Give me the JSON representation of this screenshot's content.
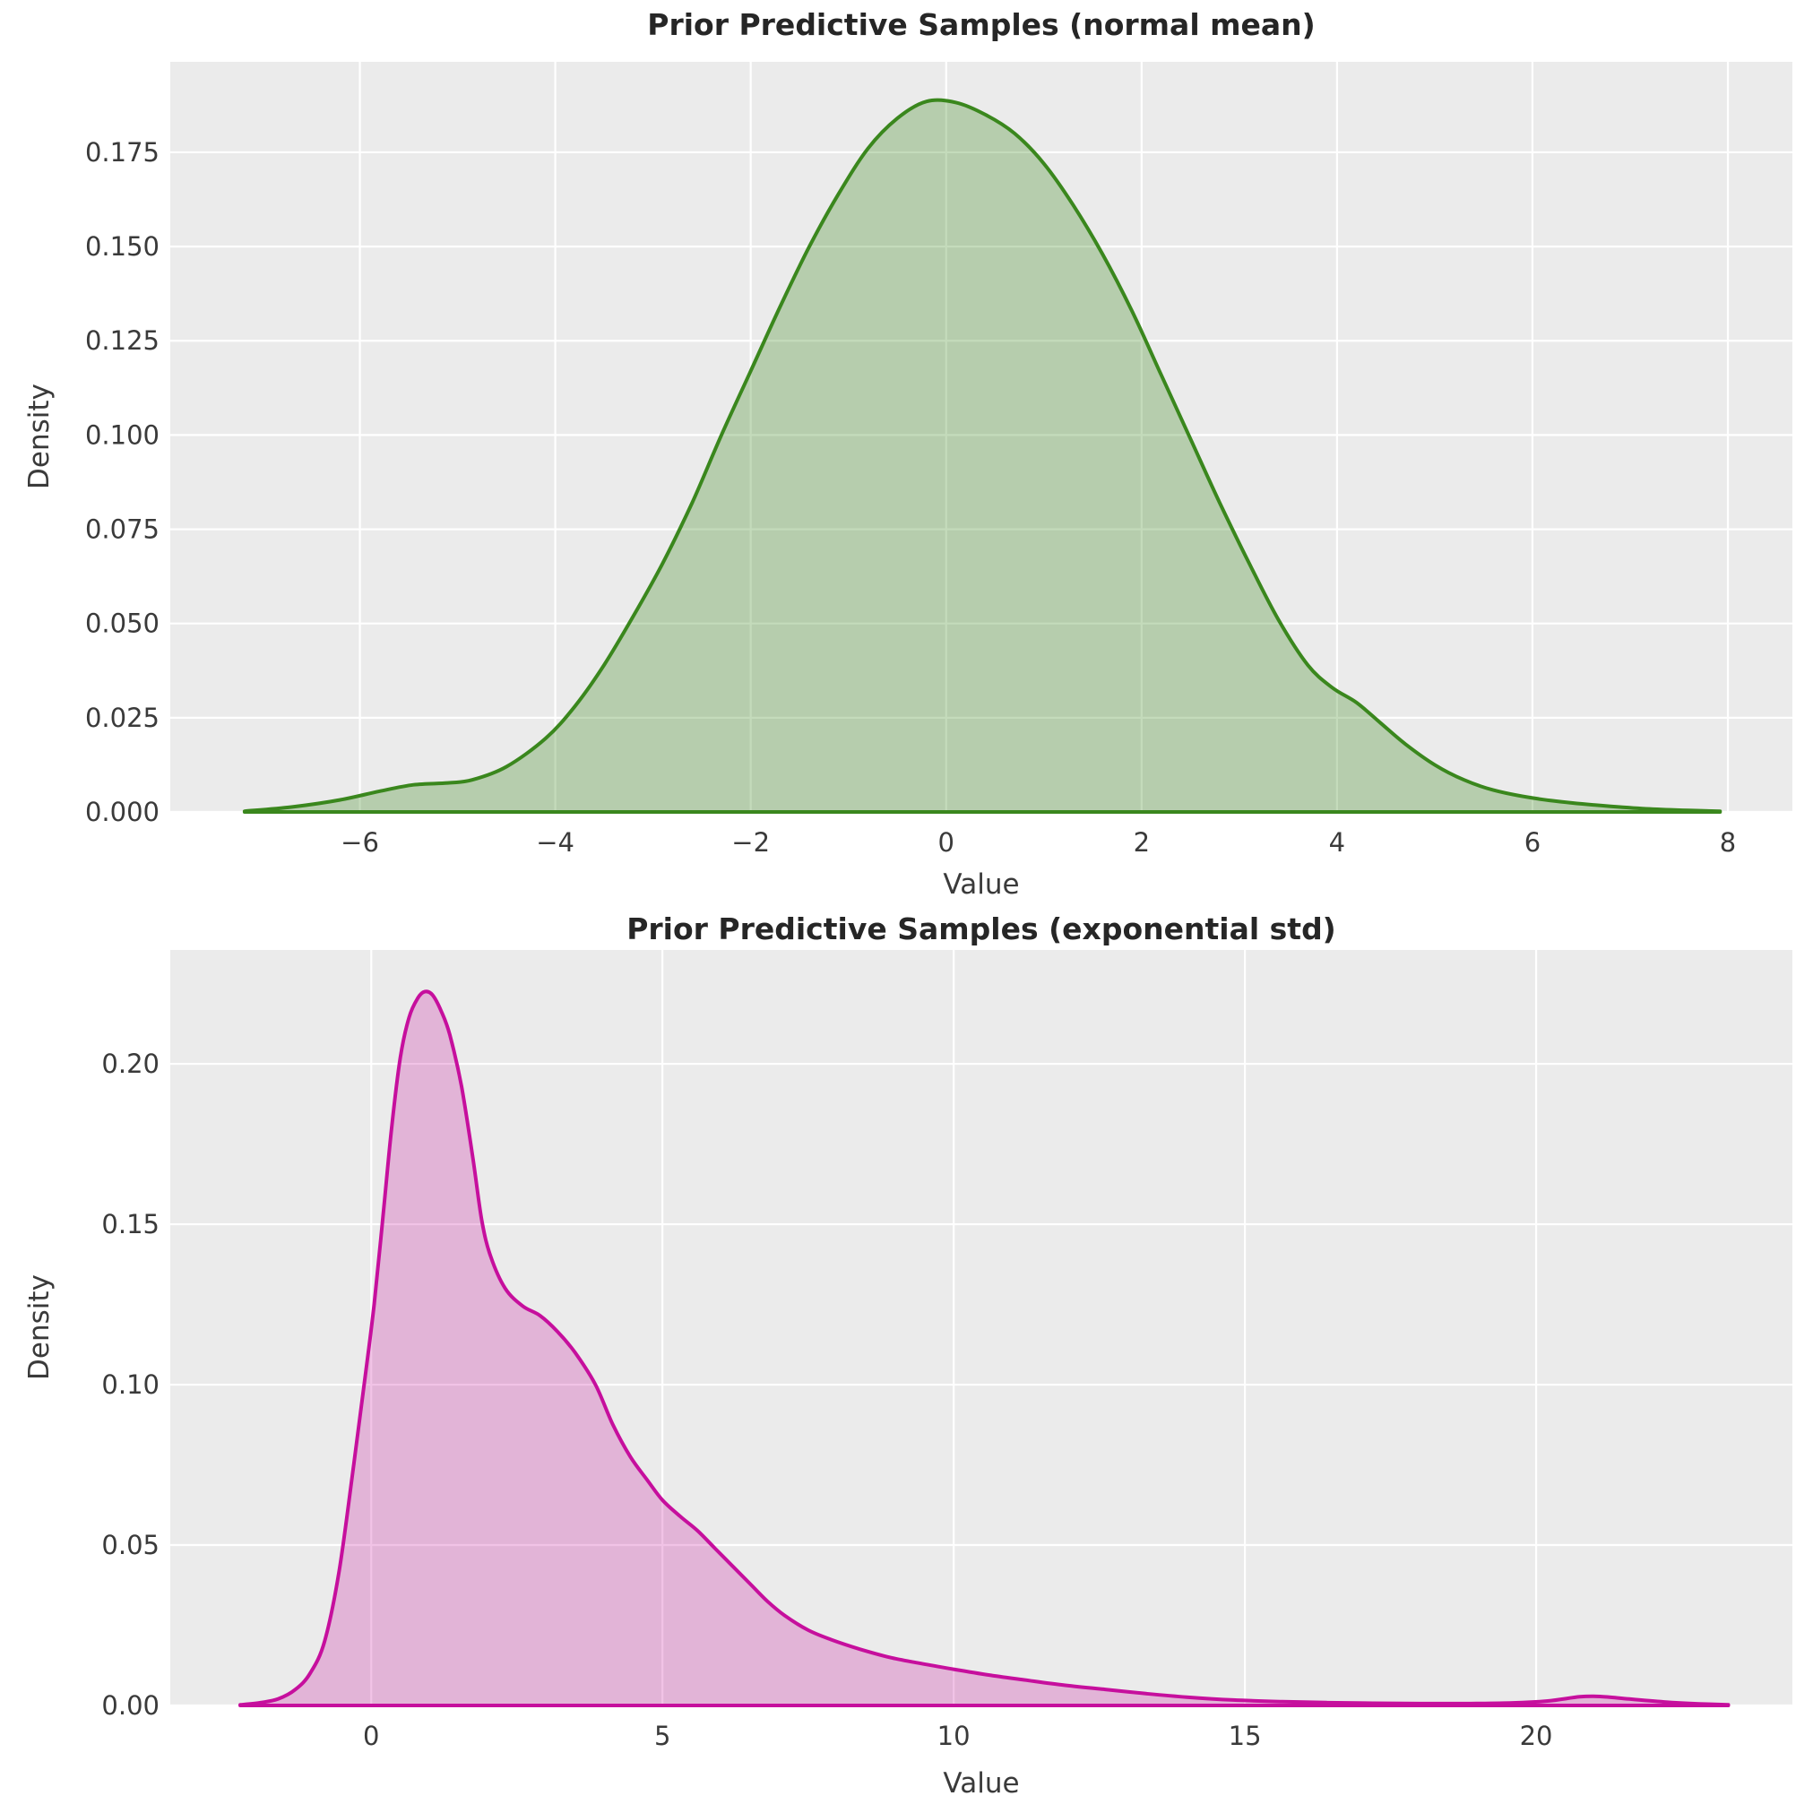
{
  "figure": {
    "background": "#ffffff",
    "panel_background": "#ebebeb",
    "grid_color": "#ffffff"
  },
  "chart_data": [
    {
      "type": "area",
      "title": "Prior Predictive Samples (normal mean)",
      "xlabel": "Value",
      "ylabel": "Density",
      "xlim": [
        -7.94,
        8.66
      ],
      "ylim": [
        0,
        0.199
      ],
      "grid": true,
      "legend": "none",
      "line_color": "#3a871d",
      "fill_color": "rgba(58,135,29,0.30)",
      "xticks": [
        {
          "v": -6,
          "label": "−6"
        },
        {
          "v": -4,
          "label": "−4"
        },
        {
          "v": -2,
          "label": "−2"
        },
        {
          "v": 0,
          "label": "0"
        },
        {
          "v": 2,
          "label": "2"
        },
        {
          "v": 4,
          "label": "4"
        },
        {
          "v": 6,
          "label": "6"
        },
        {
          "v": 8,
          "label": "8"
        }
      ],
      "yticks": [
        {
          "v": 0.0,
          "label": "0.000"
        },
        {
          "v": 0.025,
          "label": "0.025"
        },
        {
          "v": 0.05,
          "label": "0.050"
        },
        {
          "v": 0.075,
          "label": "0.075"
        },
        {
          "v": 0.1,
          "label": "0.100"
        },
        {
          "v": 0.125,
          "label": "0.125"
        },
        {
          "v": 0.15,
          "label": "0.150"
        },
        {
          "v": 0.175,
          "label": "0.175"
        }
      ],
      "series": {
        "name": "kde-normal-mean",
        "x": [
          -7.18,
          -6.7,
          -6.2,
          -5.8,
          -5.45,
          -5.1,
          -4.85,
          -4.5,
          -4.1,
          -3.8,
          -3.5,
          -3.2,
          -2.9,
          -2.6,
          -2.3,
          -2.0,
          -1.7,
          -1.4,
          -1.1,
          -0.8,
          -0.5,
          -0.2,
          0.1,
          0.4,
          0.7,
          1.0,
          1.3,
          1.6,
          1.9,
          2.2,
          2.5,
          2.8,
          3.1,
          3.4,
          3.7,
          3.95,
          4.2,
          4.45,
          4.7,
          5.0,
          5.3,
          5.6,
          6.0,
          6.4,
          6.8,
          7.2,
          7.6,
          7.92
        ],
        "density": [
          0.0002,
          0.0013,
          0.0032,
          0.0055,
          0.0072,
          0.0077,
          0.0085,
          0.012,
          0.0195,
          0.028,
          0.039,
          0.052,
          0.066,
          0.082,
          0.1,
          0.117,
          0.134,
          0.15,
          0.164,
          0.176,
          0.184,
          0.1885,
          0.1882,
          0.185,
          0.18,
          0.172,
          0.161,
          0.148,
          0.133,
          0.116,
          0.099,
          0.082,
          0.066,
          0.051,
          0.039,
          0.033,
          0.029,
          0.0235,
          0.018,
          0.0125,
          0.0085,
          0.0058,
          0.0037,
          0.0024,
          0.0015,
          0.0008,
          0.0004,
          0.0002
        ]
      }
    },
    {
      "type": "area",
      "title": "Prior Predictive Samples (exponential std)",
      "xlabel": "Value",
      "ylabel": "Density",
      "xlim": [
        -3.45,
        24.4
      ],
      "ylim": [
        0,
        0.2355
      ],
      "grid": true,
      "legend": "none",
      "line_color": "#c60f9d",
      "fill_color": "rgba(198,15,157,0.25)",
      "xticks": [
        {
          "v": 0,
          "label": "0"
        },
        {
          "v": 5,
          "label": "5"
        },
        {
          "v": 10,
          "label": "10"
        },
        {
          "v": 15,
          "label": "15"
        },
        {
          "v": 20,
          "label": "20"
        }
      ],
      "yticks": [
        {
          "v": 0.0,
          "label": "0.00"
        },
        {
          "v": 0.05,
          "label": "0.05"
        },
        {
          "v": 0.1,
          "label": "0.10"
        },
        {
          "v": 0.15,
          "label": "0.15"
        },
        {
          "v": 0.2,
          "label": "0.20"
        }
      ],
      "series": {
        "name": "kde-exponential-std",
        "x": [
          -2.25,
          -1.9,
          -1.6,
          -1.3,
          -1.05,
          -0.8,
          -0.55,
          -0.3,
          -0.1,
          0.05,
          0.2,
          0.35,
          0.5,
          0.65,
          0.8,
          0.92,
          1.05,
          1.2,
          1.35,
          1.55,
          1.75,
          1.9,
          2.05,
          2.3,
          2.6,
          2.9,
          3.2,
          3.5,
          3.85,
          4.15,
          4.45,
          4.75,
          5.0,
          5.3,
          5.6,
          5.9,
          6.2,
          6.5,
          6.8,
          7.1,
          7.5,
          7.9,
          8.4,
          8.9,
          9.4,
          10.0,
          10.6,
          11.2,
          11.9,
          12.6,
          13.3,
          14.0,
          14.8,
          15.6,
          16.4,
          17.2,
          18.0,
          18.8,
          19.6,
          20.2,
          20.75,
          21.1,
          21.6,
          22.2,
          22.8,
          23.3
        ],
        "density": [
          0.0002,
          0.0009,
          0.002,
          0.005,
          0.01,
          0.02,
          0.042,
          0.075,
          0.103,
          0.125,
          0.152,
          0.18,
          0.202,
          0.2145,
          0.2205,
          0.2225,
          0.2215,
          0.2165,
          0.209,
          0.193,
          0.17,
          0.151,
          0.14,
          0.13,
          0.1245,
          0.1215,
          0.1165,
          0.11,
          0.1,
          0.0875,
          0.0775,
          0.07,
          0.064,
          0.059,
          0.0545,
          0.049,
          0.0435,
          0.038,
          0.0325,
          0.028,
          0.0235,
          0.0205,
          0.0175,
          0.015,
          0.0132,
          0.0113,
          0.0095,
          0.008,
          0.0063,
          0.005,
          0.0037,
          0.0026,
          0.0017,
          0.0012,
          0.0009,
          0.0007,
          0.0006,
          0.0006,
          0.0008,
          0.0014,
          0.0027,
          0.0028,
          0.002,
          0.0011,
          0.0005,
          0.0002
        ]
      }
    }
  ]
}
